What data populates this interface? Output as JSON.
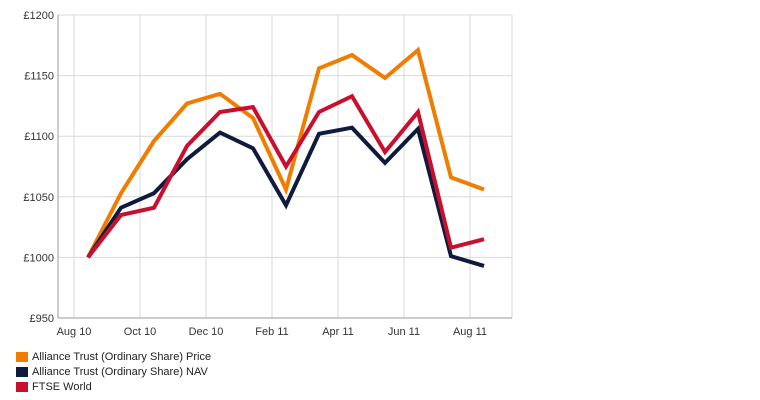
{
  "chart_data": {
    "type": "line",
    "title": "",
    "xlabel": "",
    "ylabel": "",
    "ylim": [
      950,
      1200
    ],
    "y_ticks": [
      950,
      1000,
      1050,
      1100,
      1150,
      1200
    ],
    "y_tick_labels": [
      "£950",
      "£1000",
      "£1050",
      "£1100",
      "£1150",
      "£1200"
    ],
    "x_tick_labels": [
      "Aug 10",
      "Oct 10",
      "Dec 10",
      "Feb 11",
      "Apr 11",
      "Jun 11",
      "Aug 11"
    ],
    "x": [
      "Aug 10",
      "Sep 10",
      "Oct 10",
      "Nov 10",
      "Dec 10",
      "Jan 11",
      "Feb 11",
      "Mar 11",
      "Apr 11",
      "May 11",
      "Jun 11",
      "Jul 11",
      "Aug 11"
    ],
    "grid": true,
    "legend_position": "bottom-left",
    "series": [
      {
        "name": "Alliance Trust (Ordinary Share) Price",
        "color": "#f07c00",
        "values": [
          1000,
          1053,
          1096,
          1127,
          1135,
          1115,
          1056,
          1156,
          1167,
          1148,
          1171,
          1066,
          1056
        ]
      },
      {
        "name": "Alliance Trust (Ordinary Share) NAV",
        "color": "#0f1a3c",
        "values": [
          1000,
          1041,
          1053,
          1081,
          1103,
          1090,
          1043,
          1102,
          1107,
          1078,
          1106,
          1001,
          993
        ]
      },
      {
        "name": "FTSE World",
        "color": "#c8102e",
        "values": [
          1000,
          1035,
          1041,
          1092,
          1120,
          1124,
          1075,
          1120,
          1133,
          1087,
          1120,
          1008,
          1015
        ]
      }
    ]
  }
}
